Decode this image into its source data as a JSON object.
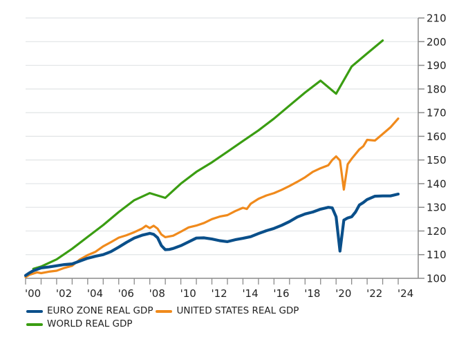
{
  "chart_data": {
    "type": "line",
    "title": "",
    "xlabel": "",
    "ylabel": "",
    "ylim": [
      100,
      210
    ],
    "xlim": [
      2000,
      2025.3
    ],
    "y_axis_side": "right",
    "grid": true,
    "yticks": [
      100,
      110,
      120,
      130,
      140,
      150,
      160,
      170,
      180,
      190,
      200,
      210
    ],
    "xticks": [
      2000,
      2002,
      2004,
      2006,
      2008,
      2010,
      2012,
      2014,
      2016,
      2018,
      2020,
      2022,
      2024
    ],
    "xtick_labels": [
      "'00",
      "'02",
      "'04",
      "'06",
      "'08",
      "'10",
      "'12",
      "'14",
      "'16",
      "'18",
      "'20",
      "'22",
      "'24"
    ],
    "legend_position": "bottom-left",
    "series": [
      {
        "name": "EURO ZONE REAL GDP",
        "color": "#0a4f8a",
        "x": [
          2000,
          2000.25,
          2000.5,
          2000.75,
          2001,
          2001.5,
          2002,
          2002.5,
          2003,
          2003.5,
          2004,
          2004.5,
          2005,
          2005.5,
          2006,
          2006.5,
          2007,
          2007.5,
          2008,
          2008.25,
          2008.5,
          2008.75,
          2009,
          2009.25,
          2009.5,
          2010,
          2010.5,
          2011,
          2011.5,
          2012,
          2012.5,
          2013,
          2013.5,
          2014,
          2014.5,
          2015,
          2015.5,
          2016,
          2016.5,
          2017,
          2017.5,
          2018,
          2018.5,
          2019,
          2019.5,
          2019.75,
          2020,
          2020.25,
          2020.5,
          2020.75,
          2021,
          2021.25,
          2021.5,
          2021.75,
          2022,
          2022.5,
          2023,
          2023.5,
          2024
        ],
        "values": [
          101.2,
          102.3,
          103.2,
          103.8,
          104.4,
          104.8,
          105.3,
          105.8,
          106.1,
          107.3,
          108.5,
          109.3,
          110.0,
          111.3,
          113.2,
          115.2,
          117.0,
          118.2,
          119.0,
          118.6,
          117.2,
          113.8,
          112.1,
          112.2,
          112.6,
          113.8,
          115.4,
          117.0,
          117.1,
          116.6,
          115.9,
          115.5,
          116.3,
          116.9,
          117.6,
          118.9,
          120.1,
          121.1,
          122.4,
          124.0,
          125.9,
          127.2,
          128.0,
          129.2,
          130.0,
          129.8,
          126.0,
          111.5,
          124.6,
          125.5,
          126.0,
          128.0,
          131.0,
          132.0,
          133.3,
          134.7,
          134.8,
          134.8,
          135.6
        ]
      },
      {
        "name": "UNITED STATES REAL GDP",
        "color": "#f08a1c",
        "x": [
          2000,
          2000.25,
          2000.5,
          2000.75,
          2001,
          2001.5,
          2002,
          2002.5,
          2003,
          2003.5,
          2004,
          2004.5,
          2005,
          2005.5,
          2006,
          2006.5,
          2007,
          2007.5,
          2007.75,
          2008,
          2008.25,
          2008.5,
          2008.75,
          2009,
          2009.5,
          2010,
          2010.5,
          2011,
          2011.5,
          2012,
          2012.5,
          2013,
          2013.5,
          2014,
          2014.25,
          2014.5,
          2015,
          2015.5,
          2016,
          2016.5,
          2017,
          2017.5,
          2018,
          2018.5,
          2019,
          2019.5,
          2019.75,
          2020,
          2020.25,
          2020.5,
          2020.75,
          2021,
          2021.5,
          2021.75,
          2022,
          2022.5,
          2023,
          2023.5,
          2024
        ],
        "values": [
          100.5,
          101.5,
          102.0,
          102.5,
          102.2,
          102.8,
          103.2,
          104.4,
          105.3,
          108.0,
          109.8,
          111.2,
          113.5,
          115.3,
          117.2,
          118.2,
          119.5,
          121.0,
          122.2,
          121.2,
          122.2,
          121.0,
          118.5,
          117.4,
          118.0,
          119.7,
          121.5,
          122.3,
          123.4,
          125.0,
          126.1,
          126.7,
          128.4,
          129.8,
          129.3,
          131.5,
          133.6,
          135.0,
          136.0,
          137.4,
          139.0,
          140.8,
          142.7,
          145.0,
          146.5,
          147.8,
          150.0,
          151.5,
          149.8,
          137.5,
          148.2,
          150.5,
          154.5,
          155.8,
          158.5,
          158.2,
          161.0,
          163.8,
          167.5
        ]
      },
      {
        "name": "WORLD REAL GDP",
        "color": "#3a9d12",
        "x": [
          2000.5,
          2001,
          2002,
          2003,
          2004,
          2005,
          2006,
          2007,
          2008,
          2009,
          2010,
          2011,
          2012,
          2013,
          2014,
          2015,
          2016,
          2017,
          2018,
          2019,
          2020,
          2021,
          2022,
          2023
        ],
        "values": [
          104.0,
          105.0,
          108.0,
          112.5,
          117.5,
          122.5,
          128.0,
          133.0,
          136.0,
          134.0,
          140.0,
          145.0,
          149.0,
          153.5,
          158.0,
          162.5,
          167.5,
          173.0,
          178.5,
          183.5,
          178.0,
          189.5,
          195.0,
          200.5
        ]
      }
    ]
  },
  "legend": {
    "items": [
      {
        "label": "EURO ZONE REAL GDP",
        "color": "#0a4f8a"
      },
      {
        "label": "UNITED STATES REAL GDP",
        "color": "#f08a1c"
      },
      {
        "label": "WORLD REAL GDP",
        "color": "#3a9d12"
      }
    ]
  }
}
